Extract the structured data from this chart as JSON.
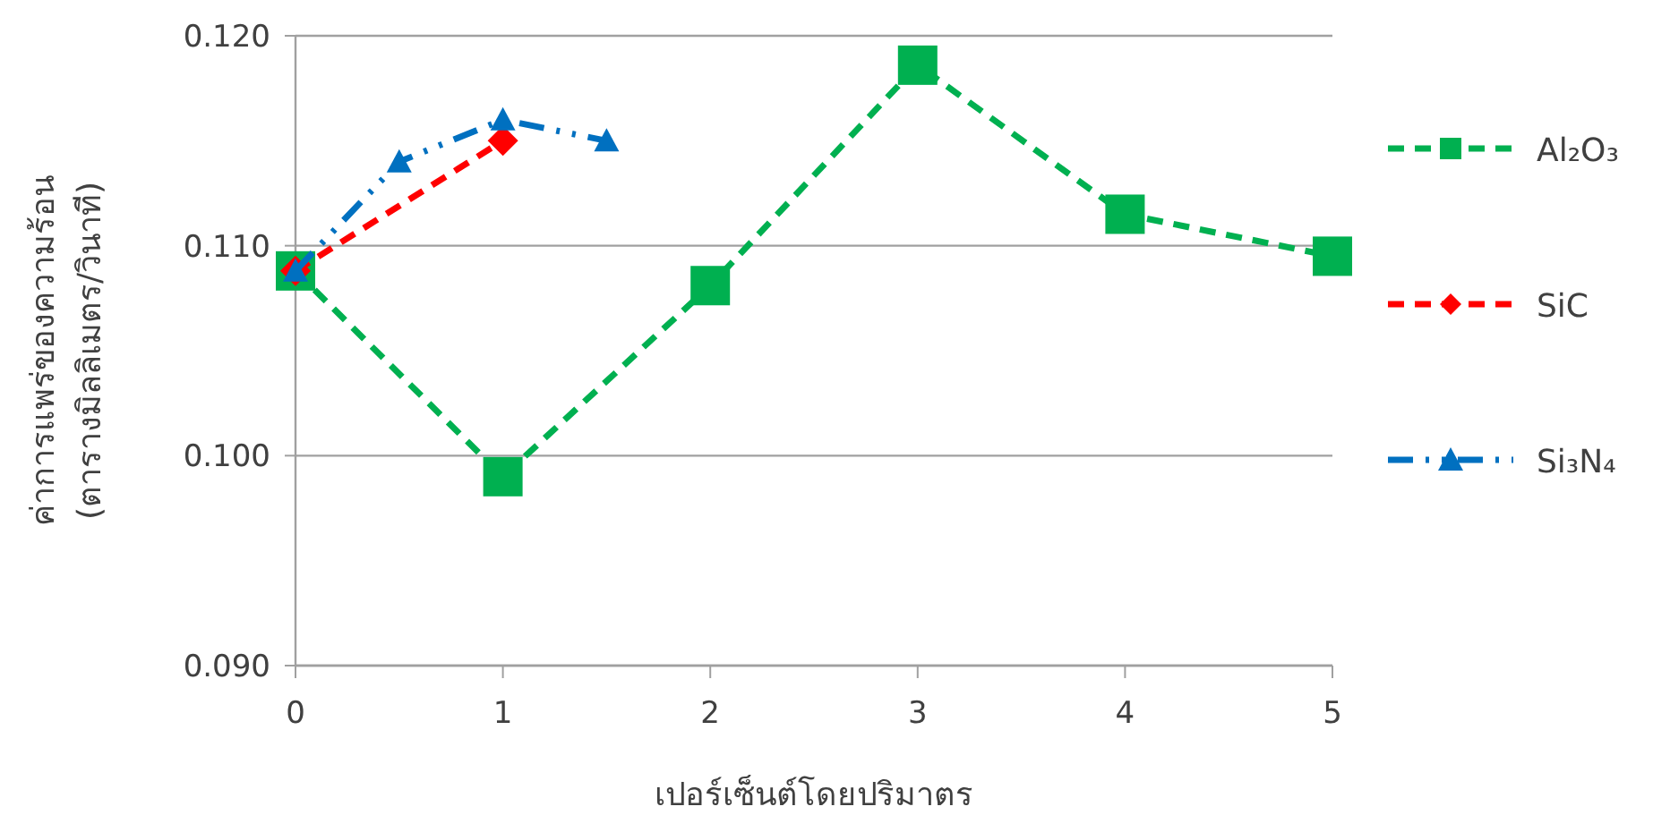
{
  "chart_data": {
    "type": "line",
    "xlabel": "เปอร์เซ็นต์โดยปริมาตร",
    "ylabel": "ค่าการแพร่ของความร้อน\n(ตารางมิลลิเมตร/วินาที)",
    "xlim": [
      0,
      5
    ],
    "xticks": [
      0,
      1,
      2,
      3,
      4,
      5
    ],
    "ylim": [
      0.09,
      0.12
    ],
    "yticks": [
      {
        "value": 0.09,
        "label": "0.090"
      },
      {
        "value": 0.1,
        "label": "0.100"
      },
      {
        "value": 0.11,
        "label": "0.110"
      },
      {
        "value": 0.12,
        "label": "0.120"
      }
    ],
    "grid": "y",
    "legend": "right",
    "series": [
      {
        "name": "Al₂O₃",
        "color": "#00b050",
        "marker": "square",
        "line_style": "dashed",
        "x": [
          0,
          1,
          2,
          3,
          4,
          5
        ],
        "values": [
          0.1088,
          0.099,
          0.1081,
          0.1186,
          0.1115,
          0.1095
        ]
      },
      {
        "name": "SiC",
        "color": "#ff0000",
        "marker": "diamond",
        "line_style": "dashed",
        "x": [
          0,
          1
        ],
        "values": [
          0.1088,
          0.115
        ]
      },
      {
        "name": "Si₃N₄",
        "color": "#0070c0",
        "marker": "triangle",
        "line_style": "dotted",
        "x": [
          0,
          0.5,
          1,
          1.5
        ],
        "values": [
          0.1088,
          0.114,
          0.116,
          0.115
        ]
      }
    ]
  }
}
